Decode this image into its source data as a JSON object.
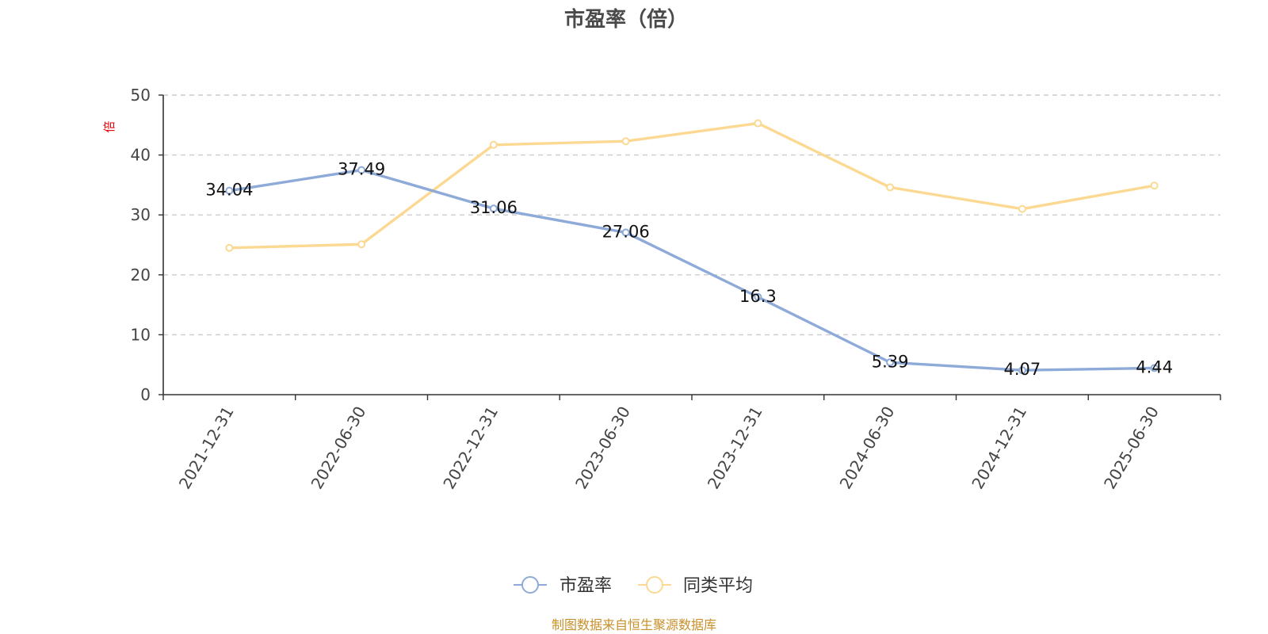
{
  "colors": {
    "series_1": "#8eaad8",
    "series_2": "#fbd993",
    "grid": "#cccccc",
    "axis": "#333333",
    "unit_label": "#e8000b",
    "source": "#c8902a"
  },
  "footer": {
    "source": "制图数据来自恒生聚源数据库"
  },
  "chart_data": {
    "type": "line",
    "title": "市盈率（倍）",
    "ylabel": "倍",
    "ylim": [
      0,
      50
    ],
    "yticks": [
      0,
      10,
      20,
      30,
      40,
      50
    ],
    "grid": true,
    "legend_position": "bottom-center",
    "categories": [
      "2021-12-31",
      "2022-06-30",
      "2022-12-31",
      "2023-06-30",
      "2023-12-31",
      "2024-06-30",
      "2024-12-31",
      "2025-06-30"
    ],
    "series": [
      {
        "name": "市盈率",
        "values": [
          34.04,
          37.49,
          31.06,
          27.06,
          16.3,
          5.39,
          4.07,
          4.44
        ],
        "labels": [
          "34.04",
          "37.49",
          "31.06",
          "27.06",
          "16.3",
          "5.39",
          "4.07",
          "4.44"
        ],
        "show_labels": true
      },
      {
        "name": "同类平均",
        "values": [
          24.5,
          25.1,
          41.7,
          42.3,
          45.3,
          34.6,
          31.0,
          34.9
        ],
        "show_labels": false
      }
    ]
  }
}
